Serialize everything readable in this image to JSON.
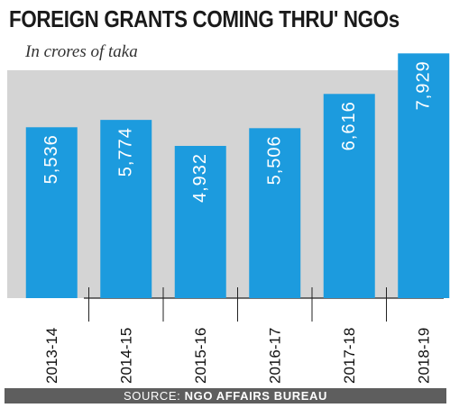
{
  "chart_data": {
    "type": "bar",
    "title": "FOREIGN GRANTS COMING THRU' NGOs",
    "subtitle": "In crores of taka",
    "categories": [
      "2013-14",
      "2014-15",
      "2015-16",
      "2016-17",
      "2017-18",
      "2018-19"
    ],
    "values": [
      5536,
      5774,
      4932,
      5506,
      6616,
      7929
    ],
    "value_labels": [
      "5,536",
      "5,774",
      "4,932",
      "5,506",
      "6,616",
      "7,929"
    ],
    "xlabel": "",
    "ylabel": "",
    "ylim": [
      0,
      8200
    ],
    "grid": false,
    "legend": "none",
    "colors": {
      "bar": "#1c9bde",
      "plot_background": "#d4d4d4",
      "value_text": "#ffffff",
      "axis_line": "#222222"
    }
  },
  "source": {
    "label": "SOURCE:",
    "value": "NGO AFFAIRS BUREAU"
  }
}
